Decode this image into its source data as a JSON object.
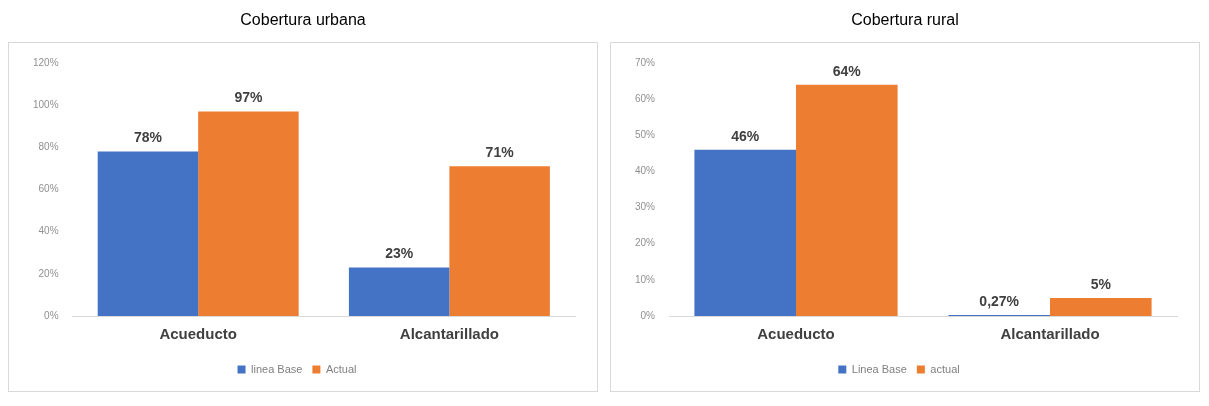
{
  "chart_data": [
    {
      "type": "bar",
      "title": "Cobertura urbana",
      "categories": [
        "Acueducto",
        "Alcantarillado"
      ],
      "series": [
        {
          "name": "linea Base",
          "color": "#4472c4",
          "values": [
            78,
            23
          ],
          "value_labels": [
            "78%",
            "23%"
          ]
        },
        {
          "name": "Actual",
          "color": "#ed7d31",
          "values": [
            97,
            71
          ],
          "value_labels": [
            "97%",
            "71%"
          ]
        }
      ],
      "ylim": [
        0,
        120
      ],
      "yticks": [
        {
          "value": 0,
          "label": "0%"
        },
        {
          "value": 20,
          "label": "20%"
        },
        {
          "value": 40,
          "label": "40%"
        },
        {
          "value": 60,
          "label": "60%"
        },
        {
          "value": 80,
          "label": "80%"
        },
        {
          "value": 100,
          "label": "100%"
        },
        {
          "value": 120,
          "label": "120%"
        }
      ],
      "grid": false,
      "legend": "bottom"
    },
    {
      "type": "bar",
      "title": "Cobertura rural",
      "categories": [
        "Acueducto",
        "Alcantarillado"
      ],
      "series": [
        {
          "name": "Linea Base",
          "color": "#4472c4",
          "values": [
            46,
            0.27
          ],
          "value_labels": [
            "46%",
            "0,27%"
          ]
        },
        {
          "name": "actual",
          "color": "#ed7d31",
          "values": [
            64,
            5
          ],
          "value_labels": [
            "64%",
            "5%"
          ]
        }
      ],
      "ylim": [
        0,
        70
      ],
      "yticks": [
        {
          "value": 0,
          "label": "0%"
        },
        {
          "value": 10,
          "label": "10%"
        },
        {
          "value": 20,
          "label": "20%"
        },
        {
          "value": 30,
          "label": "30%"
        },
        {
          "value": 40,
          "label": "40%"
        },
        {
          "value": 50,
          "label": "50%"
        },
        {
          "value": 60,
          "label": "60%"
        },
        {
          "value": 70,
          "label": "70%"
        }
      ],
      "grid": false,
      "legend": "bottom"
    }
  ]
}
